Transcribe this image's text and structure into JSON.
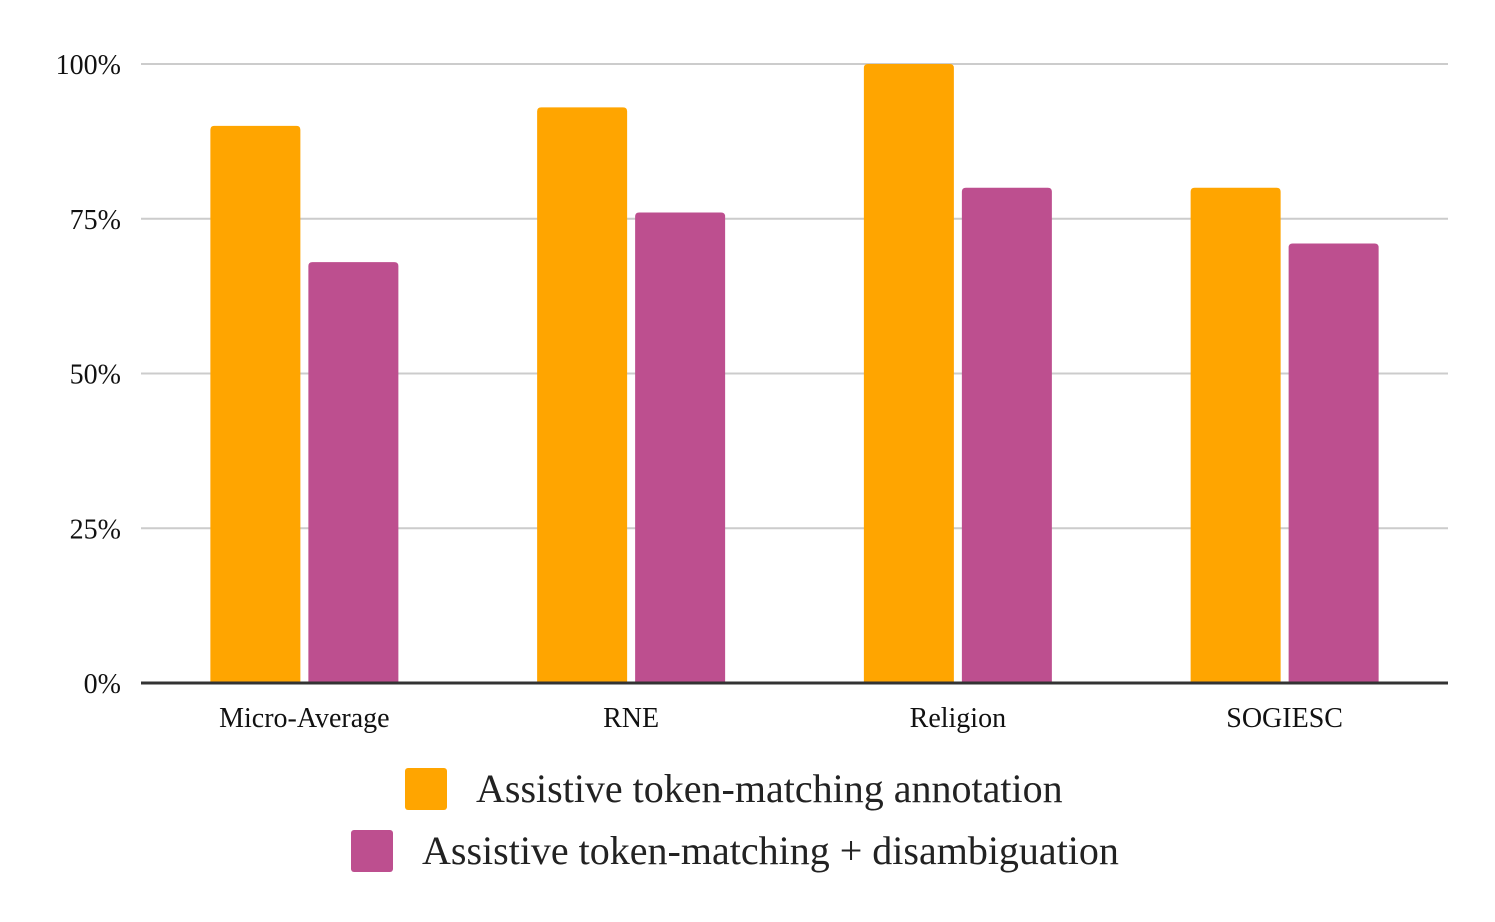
{
  "chart_data": {
    "type": "bar",
    "title": "",
    "xlabel": "",
    "ylabel": "",
    "categories": [
      "Micro-Average",
      "RNE",
      "Religion",
      "SOGIESC"
    ],
    "series": [
      {
        "name": "Assistive token-matching annotation",
        "color": "#ffa500",
        "values": [
          0.9,
          0.93,
          1.0,
          0.8
        ]
      },
      {
        "name": "Assistive token-matching + disambiguation",
        "color": "#bd4f8f",
        "values": [
          0.68,
          0.76,
          0.8,
          0.71
        ]
      }
    ],
    "ylim": [
      0,
      1
    ],
    "yticks": [
      0,
      0.25,
      0.5,
      0.75,
      1.0
    ],
    "ytick_labels": [
      "0%",
      "25%",
      "50%",
      "75%",
      "100%"
    ],
    "grid": true,
    "legend_position": "bottom"
  }
}
